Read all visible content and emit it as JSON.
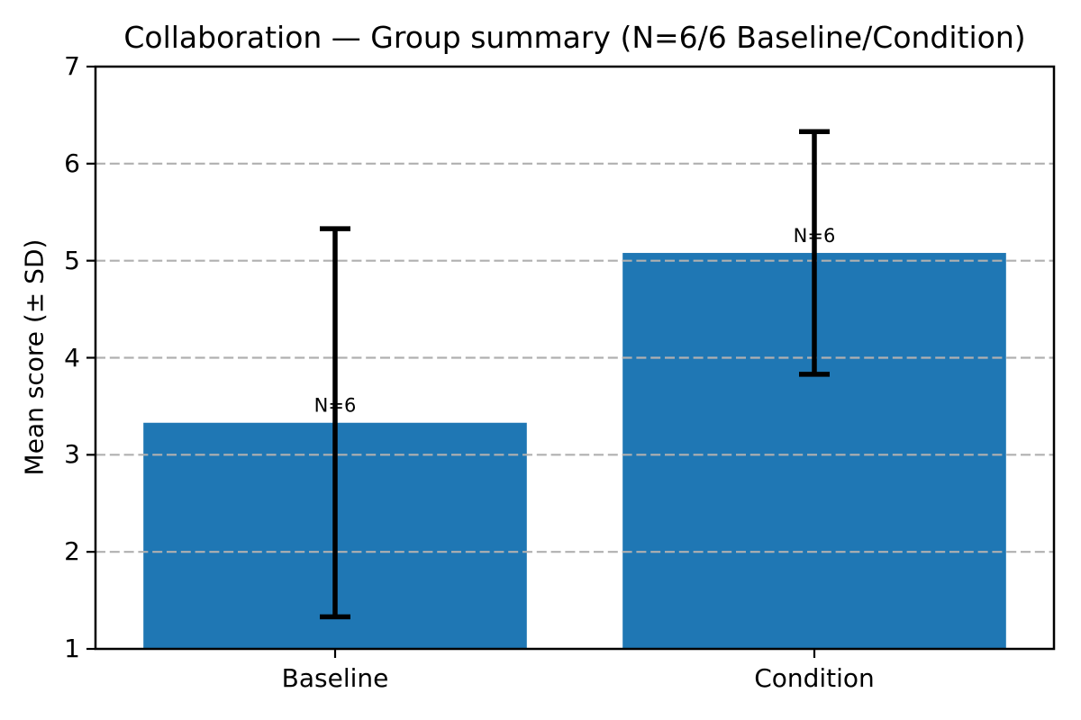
{
  "chart_data": {
    "type": "bar",
    "title": "Collaboration — Group summary (N=6/6 Baseline/Condition)",
    "ylabel": "Mean score (± SD)",
    "xlabel": "",
    "categories": [
      "Baseline",
      "Condition"
    ],
    "series": [
      {
        "name": "Mean score",
        "values": [
          3.33,
          5.08
        ]
      }
    ],
    "error_bars": {
      "sd": [
        2.0,
        1.25
      ],
      "low": [
        1.33,
        3.83
      ],
      "high": [
        5.33,
        6.33
      ]
    },
    "bar_annotations": [
      "N=6",
      "N=6"
    ],
    "ylim": [
      1,
      7
    ],
    "yticks": [
      1,
      2,
      3,
      4,
      5,
      6,
      7
    ],
    "ytick_labels": [
      "1",
      "2",
      "3",
      "4",
      "5",
      "6",
      "7"
    ],
    "xlim": [
      -0.5,
      1.5
    ],
    "bar_width": 0.8,
    "grid": {
      "axis": "y",
      "style": "dashed",
      "over_bars": true
    },
    "legend": null,
    "colors": {
      "bar": "#1f77b4",
      "error": "#000000",
      "grid": "#b0b0b0",
      "spine": "#000000",
      "text": "#000000",
      "background": "#ffffff"
    }
  }
}
